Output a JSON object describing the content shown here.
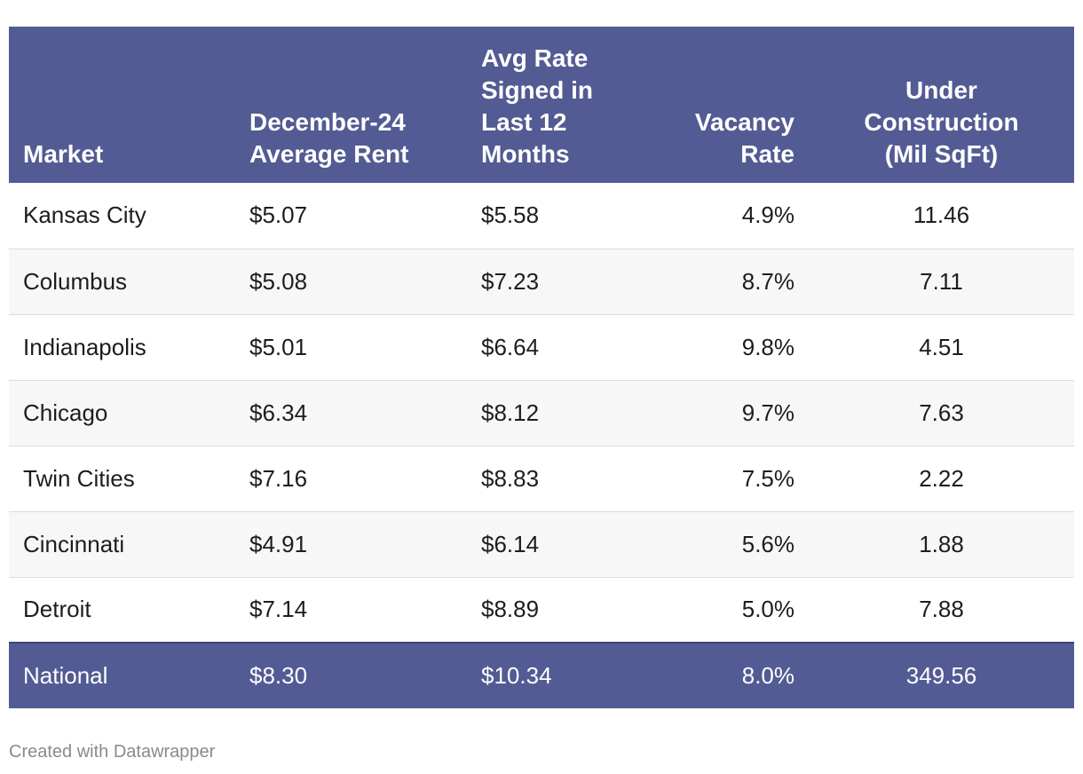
{
  "chart_data": {
    "type": "table",
    "columns": [
      [
        "Market"
      ],
      [
        "December-24",
        "Average Rent"
      ],
      [
        "Avg Rate",
        "Signed in",
        "Last 12",
        "Months"
      ],
      [
        "Vacancy",
        "Rate"
      ],
      [
        "Under",
        "Construction",
        "(Mil SqFt)"
      ]
    ],
    "rows": [
      [
        "Kansas City",
        "$5.07",
        "$5.58",
        "4.9%",
        "11.46"
      ],
      [
        "Columbus",
        "$5.08",
        "$7.23",
        "8.7%",
        "7.11"
      ],
      [
        "Indianapolis",
        "$5.01",
        "$6.64",
        "9.8%",
        "4.51"
      ],
      [
        "Chicago",
        "$6.34",
        "$8.12",
        "9.7%",
        "7.63"
      ],
      [
        "Twin Cities",
        "$7.16",
        "$8.83",
        "7.5%",
        "2.22"
      ],
      [
        "Cincinnati",
        "$4.91",
        "$6.14",
        "5.6%",
        "1.88"
      ],
      [
        "Detroit",
        "$7.14",
        "$8.89",
        "5.0%",
        "7.88"
      ]
    ],
    "total_row": [
      "National",
      "$8.30",
      "$10.34",
      "8.0%",
      "349.56"
    ]
  },
  "footer": {
    "credit": "Created with Datawrapper"
  },
  "colors": {
    "header_bg": "#525b93",
    "header_text": "#ffffff",
    "stripe_bg": "#f7f7f7",
    "credit_text": "#8a8a8a"
  }
}
